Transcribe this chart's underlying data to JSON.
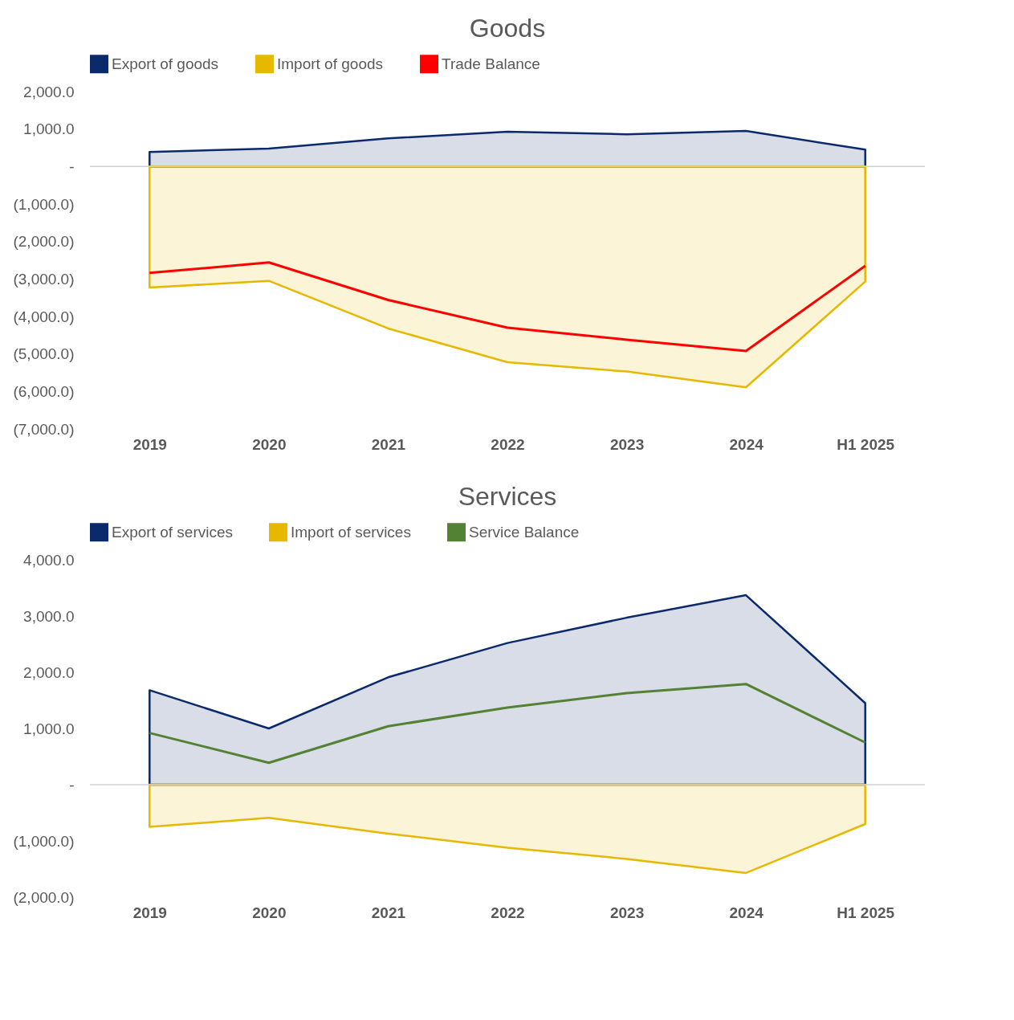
{
  "chart_data": [
    {
      "type": "area",
      "title": "Goods",
      "categories": [
        "2019",
        "2020",
        "2021",
        "2022",
        "2023",
        "2024",
        "H1 2025"
      ],
      "series": [
        {
          "name": "Export of goods",
          "color": "#0b2a6b",
          "values": [
            390,
            480,
            750,
            930,
            860,
            950,
            450
          ]
        },
        {
          "name": "Import of goods",
          "color": "#e6b800",
          "values": [
            -3230,
            -3050,
            -4320,
            -5220,
            -5470,
            -5890,
            -3070
          ]
        },
        {
          "name": "Trade Balance",
          "type": "line",
          "color": "#ff0000",
          "values": [
            -2840,
            -2560,
            -3560,
            -4300,
            -4620,
            -4920,
            -2650
          ]
        }
      ],
      "ylim": [
        -7000,
        2000
      ],
      "yticks": [
        {
          "value": -7000,
          "label": "(7,000.0)"
        },
        {
          "value": -6000,
          "label": "(6,000.0)"
        },
        {
          "value": -5000,
          "label": "(5,000.0)"
        },
        {
          "value": -4000,
          "label": "(4,000.0)"
        },
        {
          "value": -3000,
          "label": "(3,000.0)"
        },
        {
          "value": -2000,
          "label": "(2,000.0)"
        },
        {
          "value": -1000,
          "label": "(1,000.0)"
        },
        {
          "value": 0,
          "label": "-"
        },
        {
          "value": 1000,
          "label": "1,000.0"
        },
        {
          "value": 2000,
          "label": "2,000.0"
        }
      ],
      "ref_lines": [
        {
          "axis": "y",
          "value": 0,
          "color": "#d0d0d0"
        }
      ],
      "grid": false,
      "legend": "top"
    },
    {
      "type": "area",
      "title": "Services",
      "categories": [
        "2019",
        "2020",
        "2021",
        "2022",
        "2023",
        "2024",
        "H1 2025"
      ],
      "series": [
        {
          "name": "Export of services",
          "color": "#0b2a6b",
          "values": [
            1680,
            1000,
            1910,
            2520,
            2970,
            3370,
            1450
          ]
        },
        {
          "name": "Import of services",
          "color": "#e6b800",
          "values": [
            -750,
            -590,
            -870,
            -1120,
            -1320,
            -1570,
            -700
          ]
        },
        {
          "name": "Service Balance",
          "type": "line",
          "color": "#548235",
          "values": [
            920,
            390,
            1040,
            1370,
            1630,
            1790,
            750
          ]
        }
      ],
      "ylim": [
        -2000,
        4000
      ],
      "yticks": [
        {
          "value": -2000,
          "label": "(2,000.0)"
        },
        {
          "value": -1000,
          "label": "(1,000.0)"
        },
        {
          "value": 0,
          "label": "-"
        },
        {
          "value": 1000,
          "label": "1,000.0"
        },
        {
          "value": 2000,
          "label": "2,000.0"
        },
        {
          "value": 3000,
          "label": "3,000.0"
        },
        {
          "value": 4000,
          "label": "4,000.0"
        }
      ],
      "ref_lines": [
        {
          "axis": "y",
          "value": 0,
          "color": "#d0d0d0"
        }
      ],
      "grid": false,
      "legend": "top"
    }
  ]
}
